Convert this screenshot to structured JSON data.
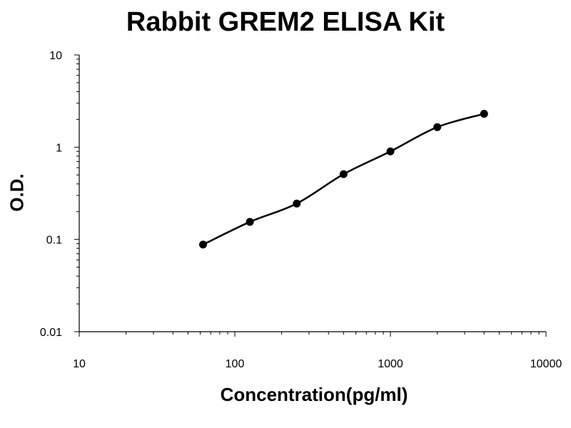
{
  "chart_data": {
    "type": "scatter",
    "title": "Rabbit GREM2 ELISA Kit",
    "xlabel": "Concentration(pg/ml)",
    "ylabel": "O.D.",
    "x_scale": "log",
    "y_scale": "log",
    "xlim": [
      10,
      10000
    ],
    "ylim": [
      0.01,
      10
    ],
    "x_ticks": [
      "10",
      "100",
      "1000",
      "10000"
    ],
    "y_ticks": [
      "0.01",
      "0.1",
      "1",
      "10"
    ],
    "grid": false,
    "legend": "none",
    "series": [
      {
        "x": [
          62.5,
          125,
          250,
          500,
          1000,
          2000,
          4000
        ],
        "y": [
          0.088,
          0.155,
          0.245,
          0.51,
          0.9,
          1.65,
          2.3
        ],
        "marker": "circle",
        "fit_curve": true,
        "color": "#000000"
      }
    ]
  }
}
